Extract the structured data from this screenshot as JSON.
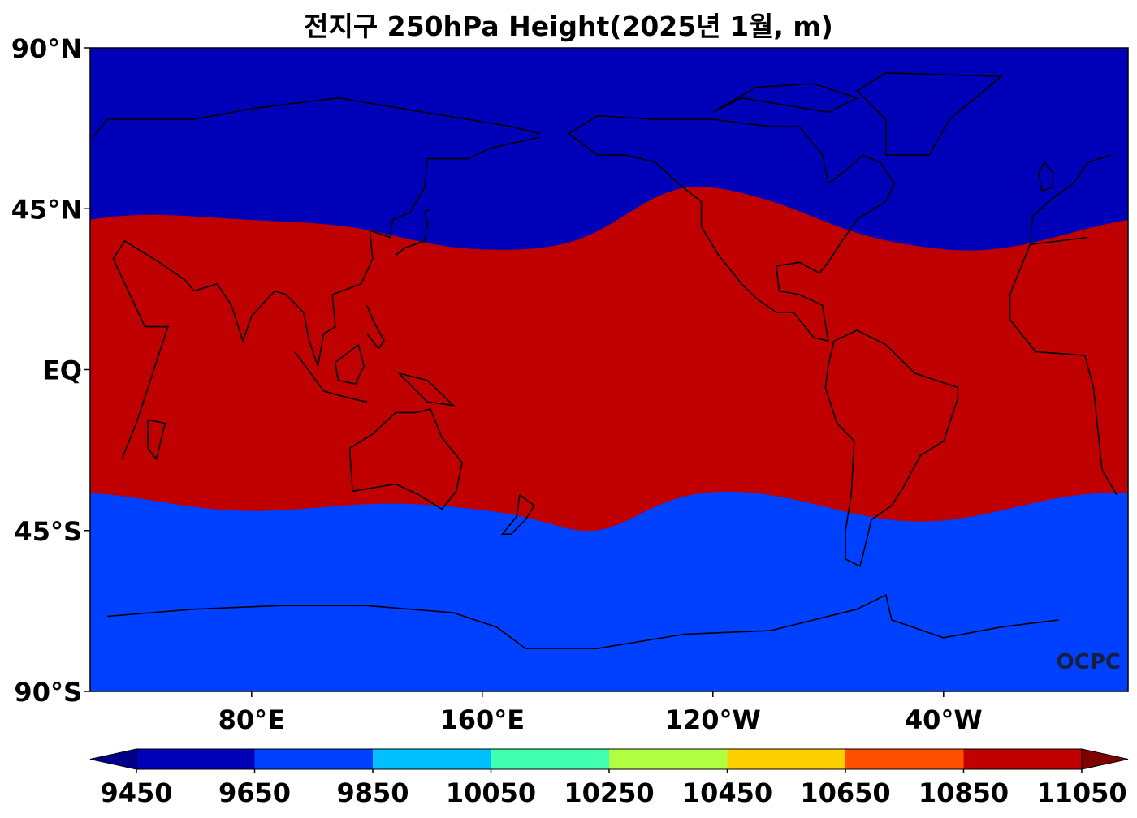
{
  "title": "전지구 250hPa Height(2025년 1월, m)",
  "watermark": "OCPC",
  "lat_ticks": [
    {
      "label": "90°N",
      "lat": 90
    },
    {
      "label": "45°N",
      "lat": 45
    },
    {
      "label": "EQ",
      "lat": 0
    },
    {
      "label": "45°S",
      "lat": -45
    },
    {
      "label": "90°S",
      "lat": -90
    }
  ],
  "lon_ticks": [
    {
      "label": "80°E",
      "lon": 80
    },
    {
      "label": "160°E",
      "lon": 160
    },
    {
      "label": "120°W",
      "lon": 240
    },
    {
      "label": "40°W",
      "lon": 320
    }
  ],
  "colorbar": {
    "levels": [
      9450,
      9650,
      9850,
      10050,
      10250,
      10450,
      10650,
      10850,
      11050
    ],
    "colors": [
      "#0000b8",
      "#0040ff",
      "#00c0ff",
      "#40ffb0",
      "#b0ff40",
      "#ffd000",
      "#ff5000",
      "#c00000"
    ],
    "under_color": "#00008a",
    "over_color": "#800000",
    "unit": "m"
  }
}
